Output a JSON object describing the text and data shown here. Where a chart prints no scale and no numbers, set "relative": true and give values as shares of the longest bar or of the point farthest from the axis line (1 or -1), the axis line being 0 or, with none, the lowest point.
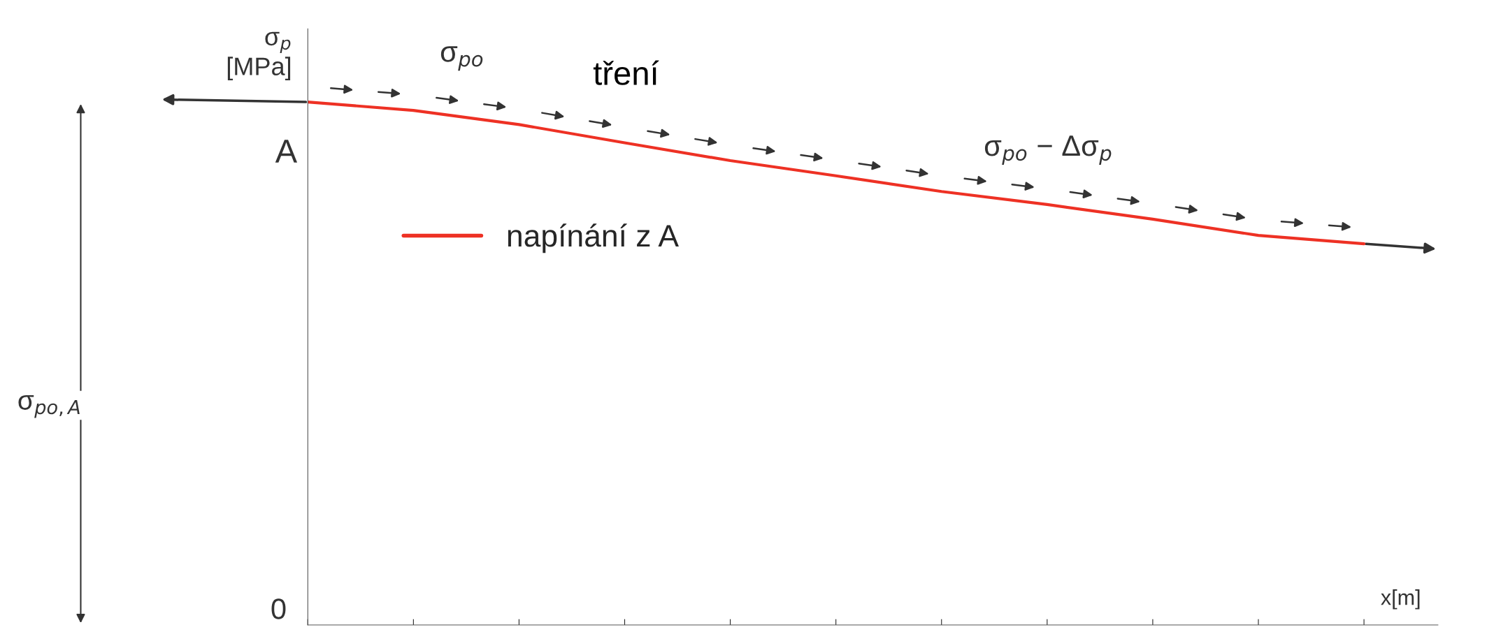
{
  "chart_data": {
    "type": "line",
    "relative": true,
    "ylabel": "σ$_{p}$\n[MPa]",
    "xlabel": "x[m]",
    "categories": [
      null,
      null,
      null,
      null,
      null,
      null,
      null,
      null,
      null,
      null,
      null
    ],
    "series": [
      {
        "name": "napínání z A",
        "color": "#ee3124",
        "values": [
          1,
          0.984,
          0.957,
          0.922,
          0.888,
          0.859,
          0.829,
          0.804,
          0.776,
          0.745,
          0.729
        ]
      }
    ],
    "annotations": [
      "A",
      "0",
      "tření",
      "σ$_{po}$",
      "σ$_{po}$ − Δσ$_{p}$",
      "σ$_{po,A}$"
    ],
    "legend": "top left",
    "marker": "none",
    "line_style": "solid",
    "grid": false
  }
}
